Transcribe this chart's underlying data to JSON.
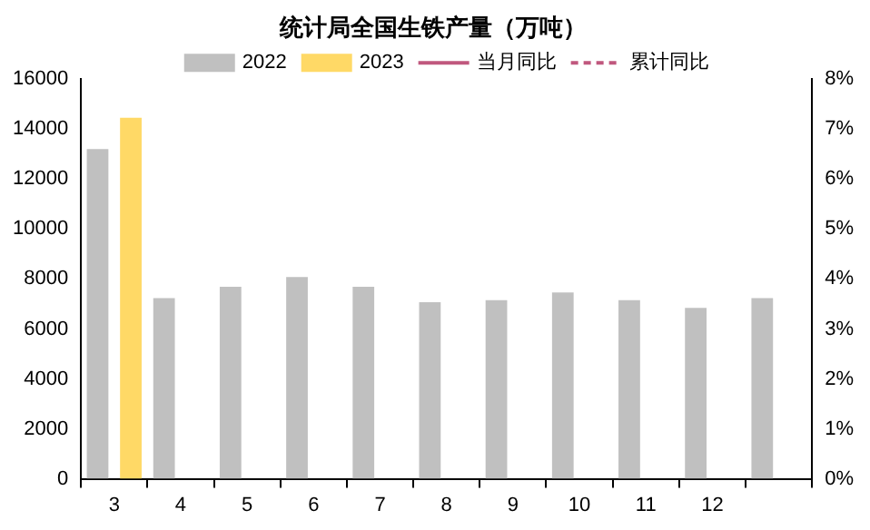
{
  "chart_data": {
    "type": "bar",
    "title": "统计局全国生铁产量（万吨）",
    "categories": [
      "3",
      "4",
      "5",
      "6",
      "7",
      "8",
      "9",
      "10",
      "11",
      "12",
      null
    ],
    "series": [
      {
        "name": "2022",
        "color": "#c0c0c0",
        "values": [
          13200,
          7230,
          7690,
          8080,
          7690,
          7070,
          7150,
          7460,
          7150,
          6840,
          7230
        ]
      },
      {
        "name": "2023",
        "color": "#ffd966",
        "values": [
          14450,
          null,
          null,
          null,
          null,
          null,
          null,
          null,
          null,
          null,
          null
        ]
      },
      {
        "name": "当月同比",
        "type": "line",
        "axis": "y2",
        "line_style": "solid",
        "color": "#c0587e",
        "values": [
          null,
          null,
          null,
          null,
          null,
          null,
          null,
          null,
          null,
          null,
          null
        ]
      },
      {
        "name": "累计同比",
        "type": "line",
        "axis": "y2",
        "line_style": "dashed",
        "color": "#c0587e",
        "values": [
          null,
          null,
          null,
          null,
          null,
          null,
          null,
          null,
          null,
          null,
          null
        ]
      }
    ],
    "ylim": [
      0,
      16000
    ],
    "yticks": [
      0,
      2000,
      4000,
      6000,
      8000,
      10000,
      12000,
      14000,
      16000
    ],
    "y2lim": [
      0,
      8
    ],
    "y2ticks": [
      {
        "value": 0,
        "label": "0%"
      },
      {
        "value": 1,
        "label": "1%"
      },
      {
        "value": 2,
        "label": "2%"
      },
      {
        "value": 3,
        "label": "3%"
      },
      {
        "value": 4,
        "label": "4%"
      },
      {
        "value": 5,
        "label": "5%"
      },
      {
        "value": 6,
        "label": "6%"
      },
      {
        "value": 7,
        "label": "7%"
      },
      {
        "value": 8,
        "label": "8%"
      }
    ],
    "grid": false,
    "legend": "top"
  }
}
